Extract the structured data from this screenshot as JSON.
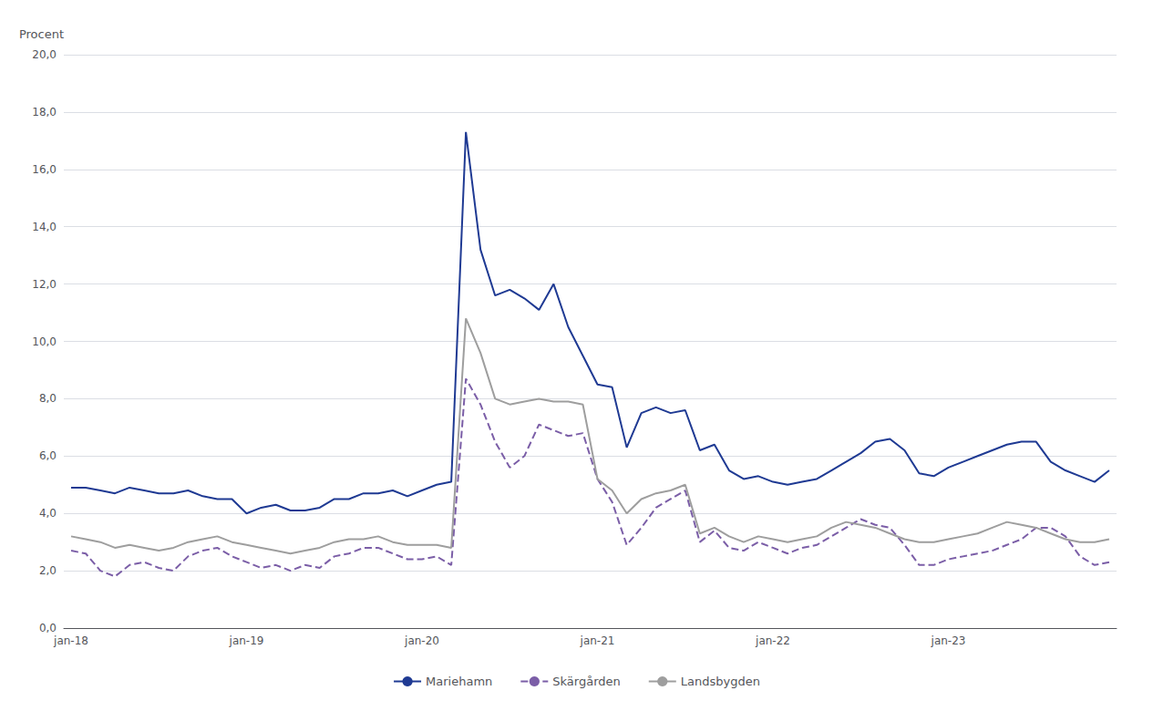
{
  "chart_data": {
    "type": "line",
    "ylabel": "Procent",
    "categories": [
      "jan-18",
      null,
      null,
      null,
      null,
      null,
      null,
      null,
      null,
      null,
      null,
      null,
      "jan-19",
      null,
      null,
      null,
      null,
      null,
      null,
      null,
      null,
      null,
      null,
      null,
      "jan-20",
      null,
      null,
      null,
      null,
      null,
      null,
      null,
      null,
      null,
      null,
      null,
      "jan-21",
      null,
      null,
      null,
      null,
      null,
      null,
      null,
      null,
      null,
      null,
      null,
      "jan-22",
      null,
      null,
      null,
      null,
      null,
      null,
      null,
      null,
      null,
      null,
      null,
      "jan-23",
      null,
      null,
      null,
      null,
      null,
      null,
      null,
      null,
      null,
      null,
      null
    ],
    "ylim": [
      0.0,
      20.0
    ],
    "yticks": [
      {
        "value": 0.0,
        "label": "0,0"
      },
      {
        "value": 2.0,
        "label": "2,0"
      },
      {
        "value": 4.0,
        "label": "4,0"
      },
      {
        "value": 6.0,
        "label": "6,0"
      },
      {
        "value": 8.0,
        "label": "8,0"
      },
      {
        "value": 10.0,
        "label": "10,0"
      },
      {
        "value": 12.0,
        "label": "12,0"
      },
      {
        "value": 14.0,
        "label": "14,0"
      },
      {
        "value": 16.0,
        "label": "16,0"
      },
      {
        "value": 18.0,
        "label": "18,0"
      },
      {
        "value": 20.0,
        "label": "20,0"
      }
    ],
    "grid": true,
    "legend": "bottom",
    "series": [
      {
        "name": "Mariehamn",
        "color": "#1f3a93",
        "line_style": "solid",
        "values": [
          4.9,
          4.9,
          4.8,
          4.7,
          4.9,
          4.8,
          4.7,
          4.7,
          4.8,
          4.6,
          4.5,
          4.5,
          4.0,
          4.2,
          4.3,
          4.1,
          4.1,
          4.2,
          4.5,
          4.5,
          4.7,
          4.7,
          4.8,
          4.6,
          4.8,
          5.0,
          5.1,
          17.3,
          13.2,
          11.6,
          11.8,
          11.5,
          11.1,
          12.0,
          10.5,
          9.5,
          8.5,
          8.4,
          6.3,
          7.5,
          7.7,
          7.5,
          7.6,
          6.2,
          6.4,
          5.5,
          5.2,
          5.3,
          5.1,
          5.0,
          5.1,
          5.2,
          5.5,
          5.8,
          6.1,
          6.5,
          6.6,
          6.2,
          5.4,
          5.3,
          5.6,
          5.8,
          6.0,
          6.2,
          6.4,
          6.5,
          6.5,
          5.8,
          5.5,
          5.3,
          5.1,
          5.5
        ]
      },
      {
        "name": "Skärgården",
        "color": "#7b5ea7",
        "line_style": "dashed",
        "values": [
          2.7,
          2.6,
          2.0,
          1.8,
          2.2,
          2.3,
          2.1,
          2.0,
          2.5,
          2.7,
          2.8,
          2.5,
          2.3,
          2.1,
          2.2,
          2.0,
          2.2,
          2.1,
          2.5,
          2.6,
          2.8,
          2.8,
          2.6,
          2.4,
          2.4,
          2.5,
          2.2,
          8.7,
          7.8,
          6.5,
          5.6,
          6.0,
          7.1,
          6.9,
          6.7,
          6.8,
          5.2,
          4.4,
          2.9,
          3.5,
          4.2,
          4.5,
          4.8,
          3.0,
          3.4,
          2.8,
          2.7,
          3.0,
          2.8,
          2.6,
          2.8,
          2.9,
          3.2,
          3.5,
          3.8,
          3.6,
          3.5,
          2.9,
          2.2,
          2.2,
          2.4,
          2.5,
          2.6,
          2.7,
          2.9,
          3.1,
          3.5,
          3.5,
          3.2,
          2.5,
          2.2,
          2.3
        ]
      },
      {
        "name": "Landsbygden",
        "color": "#9e9e9e",
        "line_style": "solid",
        "values": [
          3.2,
          3.1,
          3.0,
          2.8,
          2.9,
          2.8,
          2.7,
          2.8,
          3.0,
          3.1,
          3.2,
          3.0,
          2.9,
          2.8,
          2.7,
          2.6,
          2.7,
          2.8,
          3.0,
          3.1,
          3.1,
          3.2,
          3.0,
          2.9,
          2.9,
          2.9,
          2.8,
          10.8,
          9.6,
          8.0,
          7.8,
          7.9,
          8.0,
          7.9,
          7.9,
          7.8,
          5.2,
          4.8,
          4.0,
          4.5,
          4.7,
          4.8,
          5.0,
          3.3,
          3.5,
          3.2,
          3.0,
          3.2,
          3.1,
          3.0,
          3.1,
          3.2,
          3.5,
          3.7,
          3.6,
          3.5,
          3.3,
          3.1,
          3.0,
          3.0,
          3.1,
          3.2,
          3.3,
          3.5,
          3.7,
          3.6,
          3.5,
          3.3,
          3.1,
          3.0,
          3.0,
          3.1
        ]
      }
    ]
  }
}
